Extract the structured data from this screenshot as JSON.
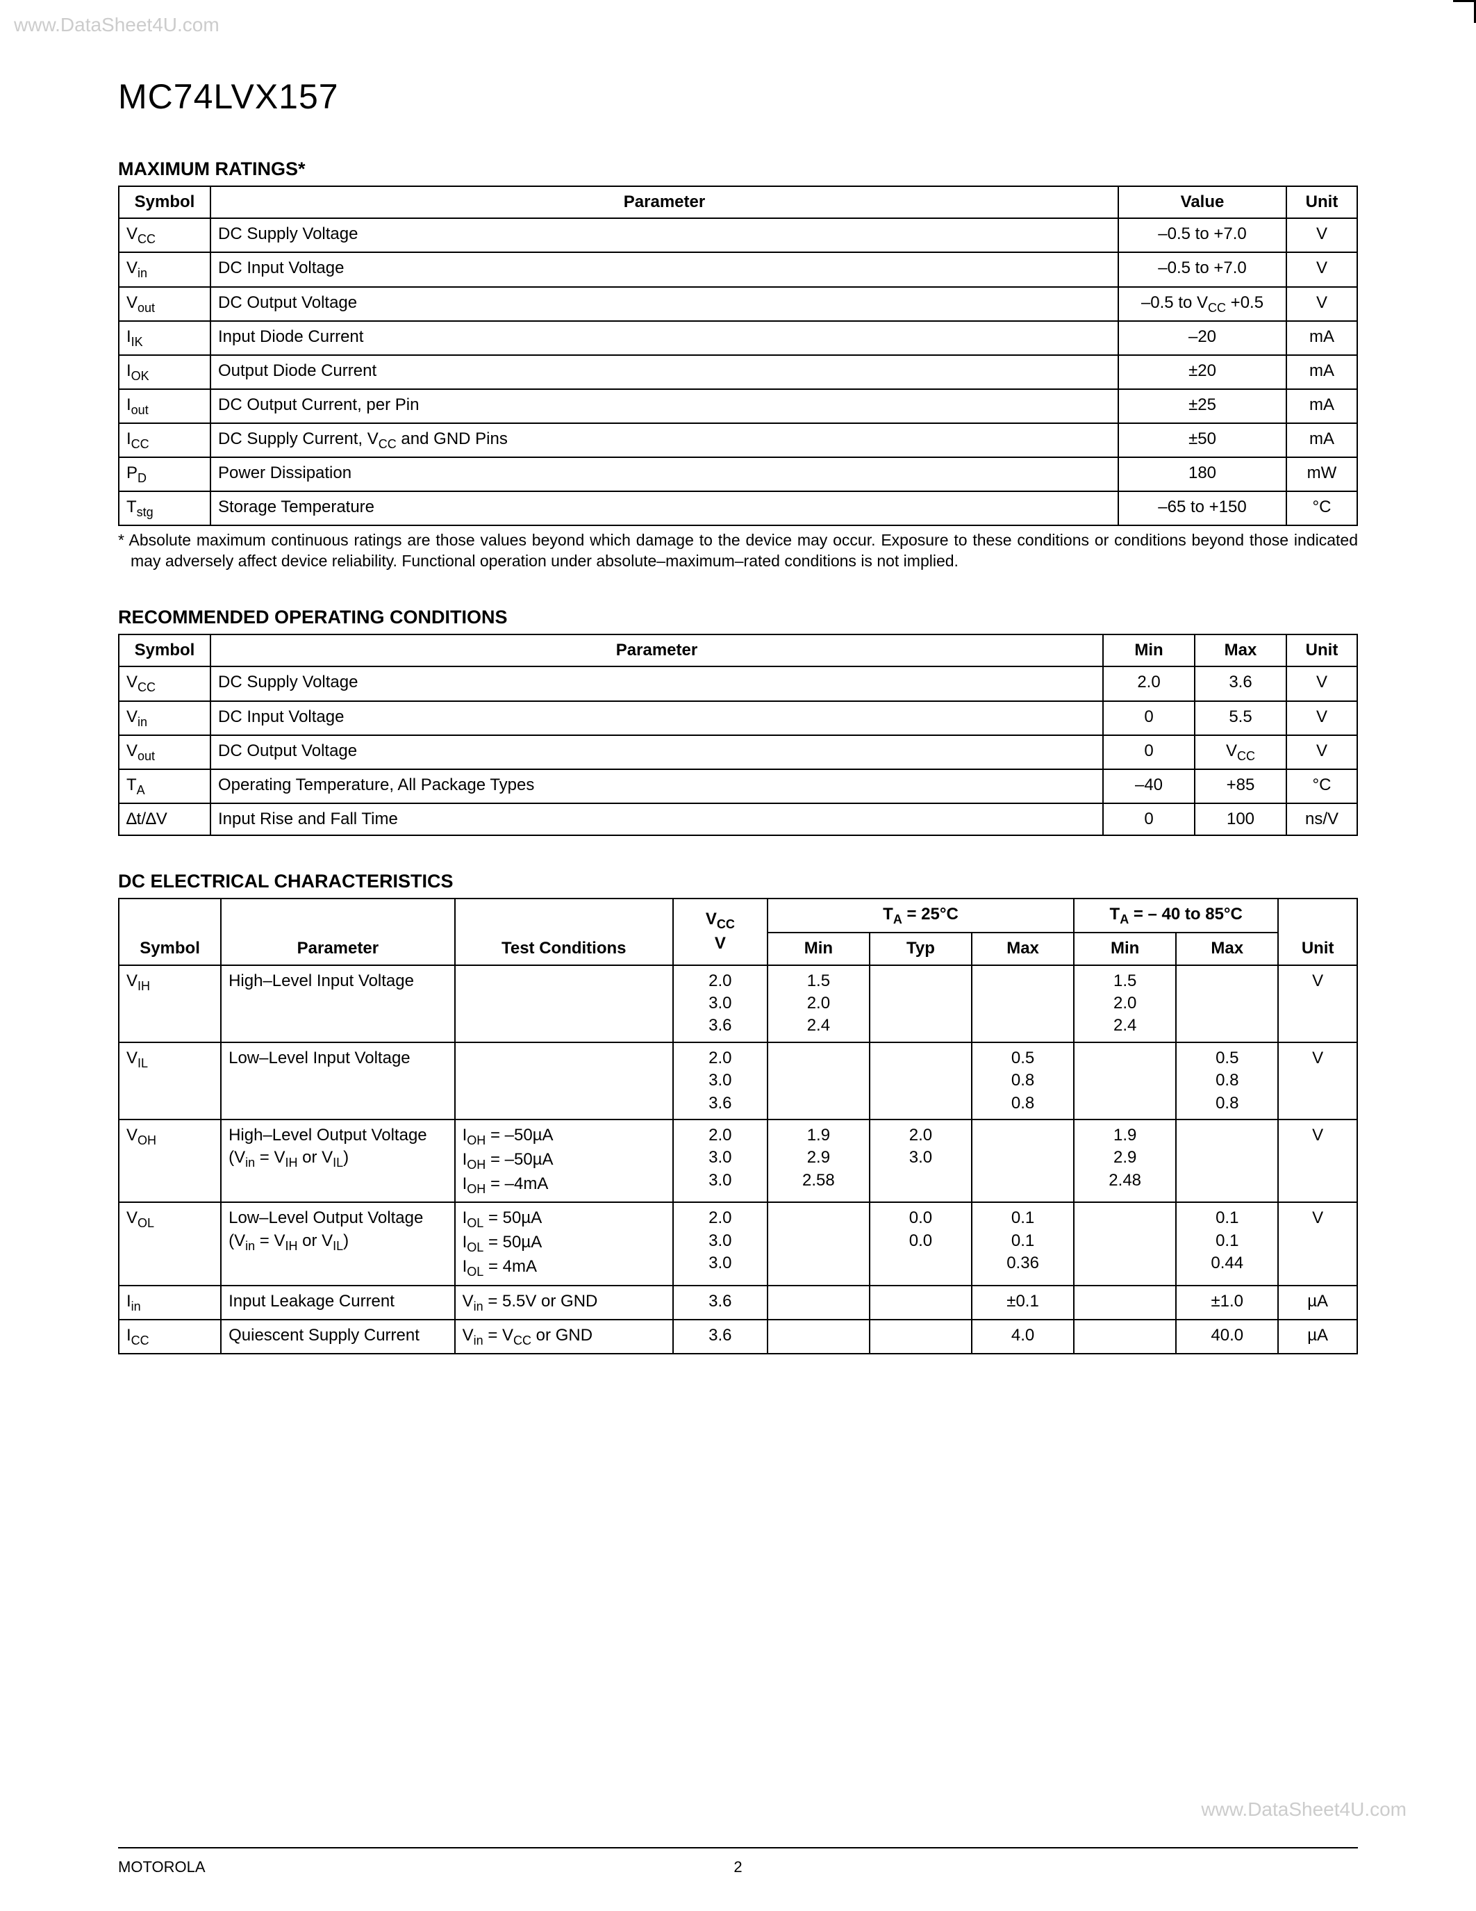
{
  "watermark_top": "www.DataSheet4U.com",
  "watermark_bottom": "www.DataSheet4U.com",
  "part_number": "MC74LVX157",
  "footer_left": "MOTOROLA",
  "footer_page": "2",
  "max_ratings": {
    "title": "MAXIMUM RATINGS*",
    "headers": {
      "symbol": "Symbol",
      "parameter": "Parameter",
      "value": "Value",
      "unit": "Unit"
    },
    "rows": [
      {
        "symbol_html": "V<span class=\"sub\">CC</span>",
        "param": "DC Supply Voltage",
        "value": "–0.5 to +7.0",
        "unit": "V"
      },
      {
        "symbol_html": "V<span class=\"sub\">in</span>",
        "param": "DC Input Voltage",
        "value": "–0.5 to +7.0",
        "unit": "V"
      },
      {
        "symbol_html": "V<span class=\"sub\">out</span>",
        "param": "DC Output Voltage",
        "value_html": "–0.5 to V<span class=\"sub\">CC</span> +0.5",
        "unit": "V"
      },
      {
        "symbol_html": "I<span class=\"sub\">IK</span>",
        "param": "Input Diode Current",
        "value": "–20",
        "unit": "mA"
      },
      {
        "symbol_html": "I<span class=\"sub\">OK</span>",
        "param": "Output Diode Current",
        "value": "±20",
        "unit": "mA"
      },
      {
        "symbol_html": "I<span class=\"sub\">out</span>",
        "param": "DC Output Current, per Pin",
        "value": "±25",
        "unit": "mA"
      },
      {
        "symbol_html": "I<span class=\"sub\">CC</span>",
        "param_html": "DC Supply Current, V<span class=\"sub\">CC</span> and GND Pins",
        "value": "±50",
        "unit": "mA"
      },
      {
        "symbol_html": "P<span class=\"sub\">D</span>",
        "param": "Power Dissipation",
        "value": "180",
        "unit": "mW"
      },
      {
        "symbol_html": "T<span class=\"sub\">stg</span>",
        "param": "Storage Temperature",
        "value": "–65 to +150",
        "unit": "°C"
      }
    ],
    "footnote": "* Absolute maximum continuous ratings are those values beyond which damage to the device may occur. Exposure to these conditions or conditions beyond those indicated may adversely affect device reliability. Functional operation under absolute–maximum–rated conditions is not implied."
  },
  "rec_cond": {
    "title": "RECOMMENDED OPERATING CONDITIONS",
    "headers": {
      "symbol": "Symbol",
      "parameter": "Parameter",
      "min": "Min",
      "max": "Max",
      "unit": "Unit"
    },
    "rows": [
      {
        "symbol_html": "V<span class=\"sub\">CC</span>",
        "param": "DC Supply Voltage",
        "min": "2.0",
        "max": "3.6",
        "unit": "V"
      },
      {
        "symbol_html": "V<span class=\"sub\">in</span>",
        "param": "DC Input Voltage",
        "min": "0",
        "max": "5.5",
        "unit": "V"
      },
      {
        "symbol_html": "V<span class=\"sub\">out</span>",
        "param": "DC Output Voltage",
        "min": "0",
        "max_html": "V<span class=\"sub\">CC</span>",
        "unit": "V"
      },
      {
        "symbol_html": "T<span class=\"sub\">A</span>",
        "param": "Operating Temperature, All Package Types",
        "min": "–40",
        "max": "+85",
        "unit": "°C"
      },
      {
        "symbol_html": "∆t/∆V",
        "param": "Input Rise and Fall Time",
        "min": "0",
        "max": "100",
        "unit": "ns/V"
      }
    ]
  },
  "dc_char": {
    "title": "DC ELECTRICAL CHARACTERISTICS",
    "headers": {
      "symbol": "Symbol",
      "parameter": "Parameter",
      "test": "Test Conditions",
      "vcc_html": "V<span class=\"sub\">CC</span><br>V",
      "ta25_html": "T<span class=\"sub\">A</span> = 25°C",
      "ta40_html": "T<span class=\"sub\">A</span> = – 40 to 85°C",
      "min": "Min",
      "typ": "Typ",
      "max": "Max",
      "unit": "Unit"
    },
    "rows": [
      {
        "symbol_html": "V<span class=\"sub\">IH</span>",
        "param": "High–Level Input Voltage",
        "test": "",
        "vcc": "2.0<br>3.0<br>3.6",
        "min25": "1.5<br>2.0<br>2.4",
        "typ25": "",
        "max25": "",
        "min40": "1.5<br>2.0<br>2.4",
        "max40": "",
        "unit": "V"
      },
      {
        "symbol_html": "V<span class=\"sub\">IL</span>",
        "param": "Low–Level Input Voltage",
        "test": "",
        "vcc": "2.0<br>3.0<br>3.6",
        "min25": "",
        "typ25": "",
        "max25": "0.5<br>0.8<br>0.8",
        "min40": "",
        "max40": "0.5<br>0.8<br>0.8",
        "unit": "V"
      },
      {
        "symbol_html": "V<span class=\"sub\">OH</span>",
        "param_html": "High–Level Output Voltage<br>(V<span class=\"sub\">in</span> = V<span class=\"sub\">IH</span> or V<span class=\"sub\">IL</span>)",
        "test_html": "I<span class=\"sub\">OH</span> = –50µA<br>I<span class=\"sub\">OH</span> = –50µA<br>I<span class=\"sub\">OH</span> = –4mA",
        "vcc": "2.0<br>3.0<br>3.0",
        "min25": "1.9<br>2.9<br>2.58",
        "typ25": "2.0<br>3.0",
        "max25": "",
        "min40": "1.9<br>2.9<br>2.48",
        "max40": "",
        "unit": "V"
      },
      {
        "symbol_html": "V<span class=\"sub\">OL</span>",
        "param_html": "Low–Level Output Voltage<br>(V<span class=\"sub\">in</span> = V<span class=\"sub\">IH</span> or V<span class=\"sub\">IL</span>)",
        "test_html": "I<span class=\"sub\">OL</span> = 50µA<br>I<span class=\"sub\">OL</span> = 50µA<br>I<span class=\"sub\">OL</span> = 4mA",
        "vcc": "2.0<br>3.0<br>3.0",
        "min25": "",
        "typ25": "0.0<br>0.0",
        "max25": "0.1<br>0.1<br>0.36",
        "min40": "",
        "max40": "0.1<br>0.1<br>0.44",
        "unit": "V"
      },
      {
        "symbol_html": "I<span class=\"sub\">in</span>",
        "param": "Input Leakage Current",
        "test_html": "V<span class=\"sub\">in</span> = 5.5V or GND",
        "vcc": "3.6",
        "min25": "",
        "typ25": "",
        "max25": "±0.1",
        "min40": "",
        "max40": "±1.0",
        "unit": "µA"
      },
      {
        "symbol_html": "I<span class=\"sub\">CC</span>",
        "param": "Quiescent Supply Current",
        "test_html": "V<span class=\"sub\">in</span> = V<span class=\"sub\">CC</span> or GND",
        "vcc": "3.6",
        "min25": "",
        "typ25": "",
        "max25": "4.0",
        "min40": "",
        "max40": "40.0",
        "unit": "µA"
      }
    ]
  }
}
